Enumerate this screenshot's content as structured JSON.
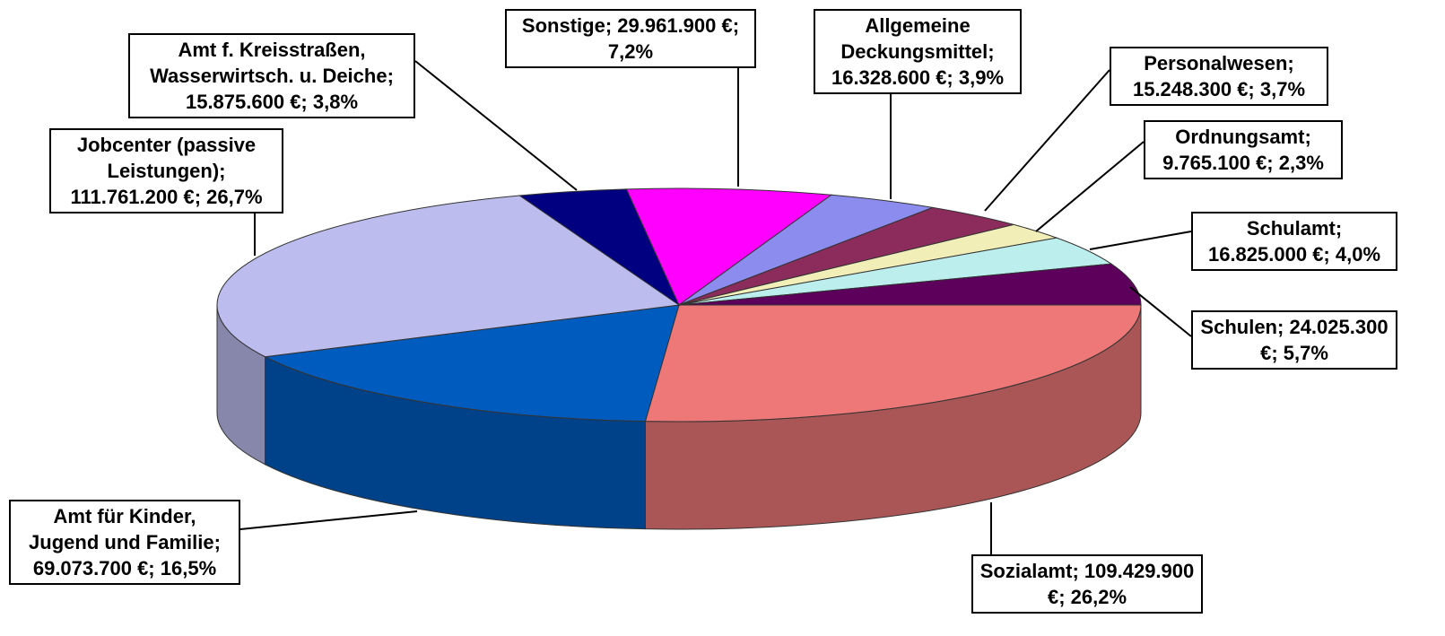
{
  "chart_data": {
    "type": "pie3d",
    "categories": [
      "Sozialamt;",
      "Amt für Kinder, Jugend und Familie;",
      "Jobcenter (passive Leistungen);",
      "Amt f. Kreisstraßen, Wasserwirtsch. u. Deiche;",
      "Sonstige;",
      "Allgemeine Deckungsmittel;",
      "Personalwesen;",
      "Ordnungsamt;",
      "Schulamt;",
      "Schulen;"
    ],
    "values": [
      109429900,
      69073700,
      111761200,
      15875600,
      29961900,
      16328600,
      15248300,
      9765100,
      16825000,
      24025300
    ],
    "value_labels": [
      "109.429.900 €;",
      "69.073.700 €;",
      "111.761.200 €;",
      "15.875.600 €;",
      "29.961.900 €;",
      "16.328.600 €;",
      "15.248.300 €;",
      "9.765.100 €;",
      "16.825.000 €;",
      "24.025.300 €;"
    ],
    "percents": [
      26.2,
      16.5,
      26.7,
      3.8,
      7.2,
      3.9,
      3.7,
      2.3,
      4.0,
      5.7
    ],
    "percent_labels": [
      "26,2%",
      "16,5%",
      "26,7%",
      "3,8%",
      "7,2%",
      "3,9%",
      "3,7%",
      "2,3%",
      "4,0%",
      "5,7%"
    ],
    "colors": [
      "#ee7777",
      "#005bbf",
      "#bcbcee",
      "#000080",
      "#ff00ff",
      "#8c8cef",
      "#8b2c5c",
      "#f2eeb8",
      "#bdeeee",
      "#5c005c"
    ]
  }
}
